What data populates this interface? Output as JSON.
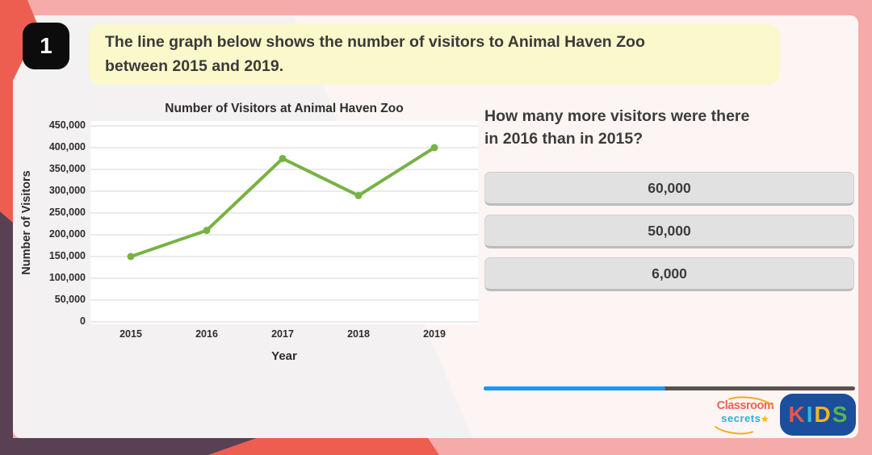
{
  "question_number": "1",
  "prompt": {
    "line1": "The line graph below shows the number of visitors to Animal Haven Zoo",
    "line2": "between 2015 and 2019."
  },
  "chart_data": {
    "type": "line",
    "title": "Number of Visitors at Animal Haven Zoo",
    "xlabel": "Year",
    "ylabel": "Number of Visitors",
    "categories": [
      "2015",
      "2016",
      "2017",
      "2018",
      "2019"
    ],
    "values": [
      150000,
      210000,
      375000,
      290000,
      400000
    ],
    "ylim": [
      0,
      450000
    ],
    "ytick_step": 50000,
    "ytick_labels": [
      "450,000",
      "400,000",
      "350,000",
      "300,000",
      "250,000",
      "200,000",
      "150,000",
      "100,000",
      "50,000",
      "0"
    ],
    "line_color": "#77b244",
    "marker": "circle",
    "grid": "horizontal",
    "plot_background": "#ffffff",
    "grid_color": "#e5e4e4"
  },
  "question": {
    "line1": "How many more visitors were there",
    "line2": "in 2016 than in 2015?",
    "options": [
      "60,000",
      "50,000",
      "6,000"
    ]
  },
  "progress": {
    "percent": 49,
    "fill_color": "#2196f3",
    "track_color": "#5a524f"
  },
  "footer": {
    "brand_line1": "Classroom",
    "brand_line2": "secrets",
    "brand_star": "★",
    "kids_letters": [
      {
        "char": "K",
        "color": "#e8564a"
      },
      {
        "char": "I",
        "color": "#35b6d9"
      },
      {
        "char": "D",
        "color": "#f1b525"
      },
      {
        "char": "S",
        "color": "#58b450"
      }
    ]
  },
  "theme": {
    "frame_pink": "#f4abaa",
    "accent_coral": "#ee5e50",
    "accent_purple": "#5a4053",
    "card_background": "#fdf5f3",
    "banner_yellow": "#fbf9cb"
  }
}
